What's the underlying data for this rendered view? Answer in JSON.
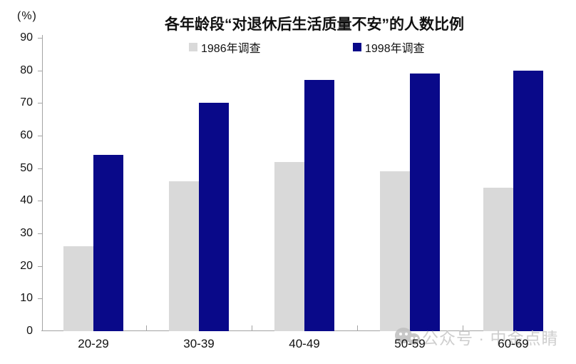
{
  "page": {
    "unit_label": "(%)"
  },
  "title": "各年龄段“对退休后生活质量不安”的人数比例",
  "legend": {
    "items": [
      {
        "label": "1986年调查",
        "color": "#d9d9d9"
      },
      {
        "label": "1998年调查",
        "color": "#090989"
      }
    ]
  },
  "watermark": {
    "text": "公众号 · 中金点睛"
  },
  "colors": {
    "bar_1986": "#d9d9d9",
    "bar_1998": "#090989",
    "axis": "#a3a3a3",
    "watermark_text": "#c6c6c6"
  },
  "chart_data": {
    "type": "bar",
    "title": "各年龄段“对退休后生活质量不安”的人数比例",
    "unit": "(%)",
    "categories": [
      "20-29",
      "30-39",
      "40-49",
      "50-59",
      "60-69"
    ],
    "series": [
      {
        "name": "1986年调查",
        "color": "#d9d9d9",
        "values": [
          26,
          46,
          52,
          49,
          44
        ]
      },
      {
        "name": "1998年调查",
        "color": "#090989",
        "values": [
          54,
          70,
          77,
          79,
          80
        ]
      }
    ],
    "ylabel": "(%)",
    "ylim": [
      0,
      90
    ],
    "ytick_step": 10,
    "grid": false,
    "legend_position": "top"
  }
}
